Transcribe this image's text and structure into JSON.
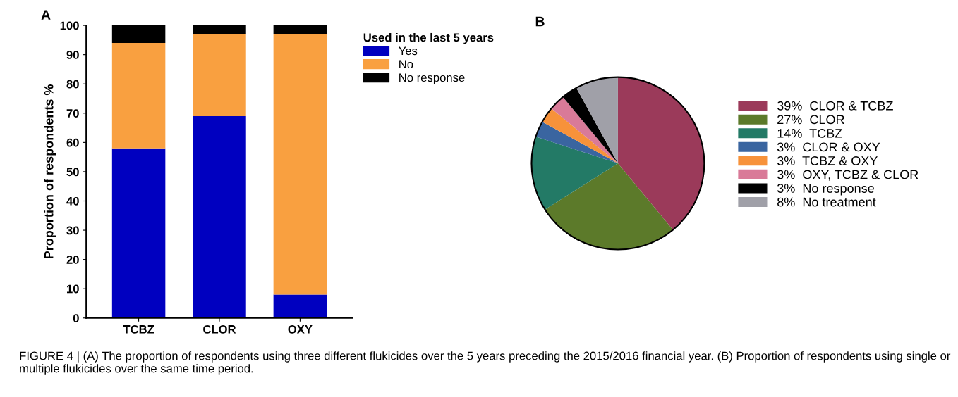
{
  "chart_data": [
    {
      "type": "bar",
      "title": "A",
      "ylabel": "Proportion of respondents %",
      "legend_title": "Used in the last 5 years",
      "categories": [
        "TCBZ",
        "CLOR",
        "OXY"
      ],
      "stacked": true,
      "series": [
        {
          "name": "Yes",
          "color": "#0000c0",
          "values": [
            58,
            69,
            8
          ]
        },
        {
          "name": "No",
          "color": "#f9a040",
          "values": [
            36,
            28,
            89
          ]
        },
        {
          "name": "No response",
          "color": "#000000",
          "values": [
            6,
            3,
            3
          ]
        }
      ],
      "ylim": [
        0,
        100
      ],
      "yticks": [
        0,
        10,
        20,
        30,
        40,
        50,
        60,
        70,
        80,
        90,
        100
      ],
      "grid": false,
      "legend": "right"
    },
    {
      "type": "pie",
      "title": "B",
      "categories": [
        "CLOR & TCBZ",
        "CLOR",
        "TCBZ",
        "CLOR & OXY",
        "TCBZ & OXY",
        "OXY, TCBZ & CLOR",
        "No response",
        "No treatment"
      ],
      "values": [
        39,
        27,
        14,
        3,
        3,
        3,
        3,
        8
      ],
      "value_labels": [
        "39%",
        "27%",
        "14%",
        "3%",
        "3%",
        "3%",
        "3%",
        "8%"
      ],
      "colors": [
        "#9b3a5a",
        "#5c7a2a",
        "#237a66",
        "#3a65a0",
        "#f7923a",
        "#d97a98",
        "#000000",
        "#a0a0a8"
      ],
      "legend": "right",
      "annotations": [
        "FIGURE 4 | (A) The proportion of respondents using three different flukicides over the 5 years preceding the 2015/2016 financial year. (B) Proportion of respondents using single or multiple flukicides over the same time period."
      ]
    }
  ]
}
